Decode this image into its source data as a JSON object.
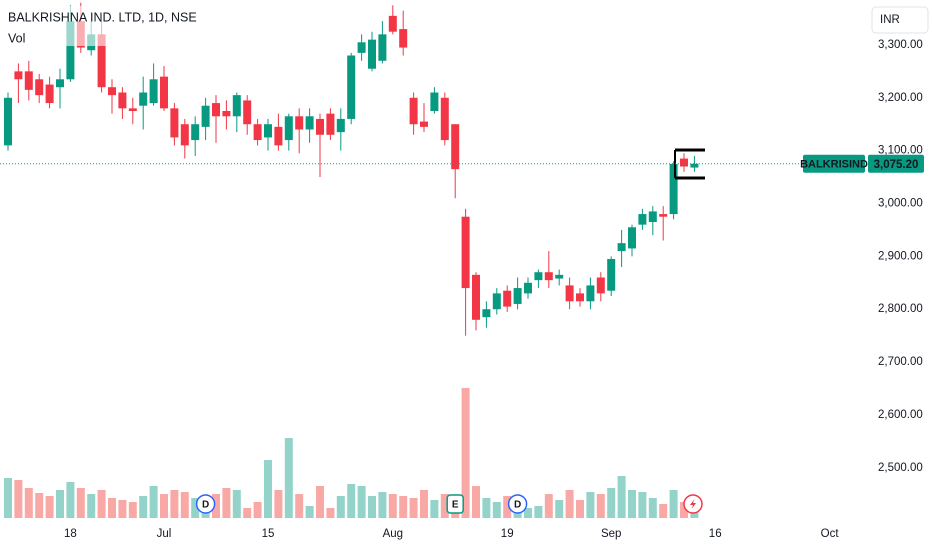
{
  "chart_data": {
    "type": "candlestick",
    "title": "BALKRISHNA IND. LTD, 1D, NSE",
    "volume_label": "Vol",
    "currency": "INR",
    "symbol": "BALKRISIND",
    "last_price": {
      "value": 3075.2,
      "label": "3,075.20"
    },
    "up_color": "#089981",
    "down_color": "#f23645",
    "volume_up_color": "#93d3ca",
    "volume_down_color": "#f8a9a6",
    "grid": false,
    "categories": [
      null,
      null,
      null,
      null,
      null,
      null,
      "18",
      null,
      null,
      null,
      null,
      null,
      null,
      null,
      null,
      "Jul",
      null,
      null,
      null,
      null,
      null,
      null,
      null,
      null,
      null,
      "15",
      null,
      null,
      null,
      null,
      null,
      null,
      null,
      null,
      null,
      null,
      null,
      "Aug",
      null,
      null,
      null,
      null,
      null,
      null,
      null,
      null,
      null,
      null,
      "19",
      null,
      null,
      null,
      null,
      null,
      null,
      null,
      null,
      null,
      "Sep",
      null,
      null,
      null,
      null,
      null,
      null,
      null,
      null,
      null,
      "16",
      null,
      null,
      null,
      null,
      null,
      null,
      null,
      null,
      null,
      null,
      "Oct"
    ],
    "events": [
      null,
      null,
      null,
      null,
      null,
      null,
      null,
      null,
      null,
      null,
      null,
      null,
      null,
      null,
      null,
      null,
      null,
      null,
      null,
      "D",
      null,
      null,
      null,
      null,
      null,
      null,
      null,
      null,
      null,
      null,
      null,
      null,
      null,
      null,
      null,
      null,
      null,
      null,
      null,
      null,
      null,
      null,
      null,
      "E",
      null,
      null,
      null,
      null,
      null,
      "D",
      null,
      null,
      null,
      null,
      null,
      null,
      null,
      null,
      null,
      null,
      null,
      null,
      null,
      null,
      null,
      null,
      null,
      null,
      null,
      null,
      null,
      null,
      null,
      null,
      null,
      null,
      null,
      null,
      null,
      null
    ],
    "open": [
      3110,
      3250,
      3250,
      3235,
      3225,
      3220,
      3235,
      3345,
      3290,
      3320,
      3220,
      3210,
      3180,
      3185,
      3190,
      3240,
      3180,
      3150,
      3120,
      3145,
      3190,
      3175,
      3165,
      3195,
      3150,
      3125,
      3145,
      3120,
      3165,
      3140,
      3160,
      3170,
      3135,
      3160,
      3285,
      3255,
      3270,
      3355,
      3330,
      3200,
      3155,
      3175,
      3200,
      3150,
      2975,
      2865,
      2785,
      2800,
      2835,
      2810,
      2830,
      2855,
      2870,
      2858,
      2845,
      2830,
      2815,
      2860,
      2835,
      2910,
      2915,
      2960,
      2965,
      2980,
      2980,
      3085,
      3068,
      null,
      null,
      null,
      null,
      null,
      null,
      null,
      null,
      null,
      null,
      null,
      null,
      null
    ],
    "high": [
      3210,
      3265,
      3270,
      3245,
      3240,
      3255,
      3375,
      3380,
      3345,
      3345,
      3235,
      3220,
      3200,
      3240,
      3265,
      3260,
      3190,
      3160,
      3165,
      3200,
      3205,
      3195,
      3210,
      3205,
      3160,
      3160,
      3170,
      3170,
      3180,
      3180,
      3170,
      3180,
      3180,
      3285,
      3320,
      3325,
      3345,
      3375,
      3365,
      3210,
      3190,
      3220,
      3210,
      3150,
      2990,
      2870,
      2815,
      2840,
      2845,
      2860,
      2860,
      2875,
      2910,
      2875,
      2860,
      2840,
      2860,
      2870,
      2900,
      2950,
      2960,
      2990,
      2995,
      2995,
      3080,
      3095,
      3090,
      null,
      null,
      null,
      null,
      null,
      null,
      null,
      null,
      null,
      null,
      null,
      null,
      null
    ],
    "low": [
      3100,
      3190,
      3195,
      3190,
      3180,
      3180,
      3230,
      3285,
      3280,
      3210,
      3170,
      3160,
      3150,
      3140,
      3185,
      3175,
      3110,
      3085,
      3090,
      3120,
      3115,
      3140,
      3135,
      3130,
      3110,
      3100,
      3100,
      3100,
      3095,
      3115,
      3050,
      3120,
      3100,
      3150,
      3270,
      3250,
      3265,
      3320,
      3280,
      3130,
      3135,
      3170,
      3110,
      3010,
      2750,
      2760,
      2765,
      2790,
      2795,
      2800,
      2820,
      2840,
      2840,
      2845,
      2800,
      2805,
      2800,
      2815,
      2825,
      2880,
      2900,
      2950,
      2940,
      2930,
      2970,
      3060,
      3060,
      null,
      null,
      null,
      null,
      null,
      null,
      null,
      null,
      null,
      null,
      null,
      null,
      null
    ],
    "close": [
      3200,
      3235,
      3215,
      3205,
      3190,
      3235,
      3345,
      3295,
      3320,
      3220,
      3205,
      3180,
      3175,
      3210,
      3235,
      3180,
      3125,
      3110,
      3150,
      3185,
      3165,
      3165,
      3205,
      3150,
      3120,
      3150,
      3110,
      3165,
      3140,
      3165,
      3130,
      3130,
      3160,
      3280,
      3305,
      3310,
      3320,
      3325,
      3295,
      3150,
      3145,
      3210,
      3120,
      3065,
      2840,
      2780,
      2800,
      2830,
      2805,
      2840,
      2850,
      2870,
      2855,
      2865,
      2815,
      2815,
      2845,
      2830,
      2895,
      2925,
      2955,
      2980,
      2985,
      2975,
      3075,
      3070,
      3075.2,
      null,
      null,
      null,
      null,
      null,
      null,
      null,
      null,
      null,
      null,
      null,
      null,
      null
    ],
    "volume": [
      40,
      38,
      30,
      25,
      22,
      28,
      36,
      30,
      24,
      28,
      20,
      18,
      16,
      22,
      32,
      24,
      28,
      26,
      20,
      16,
      24,
      30,
      28,
      10,
      16,
      58,
      28,
      80,
      24,
      12,
      32,
      10,
      22,
      34,
      32,
      22,
      26,
      24,
      22,
      20,
      28,
      18,
      24,
      20,
      130,
      32,
      20,
      16,
      22,
      14,
      10,
      12,
      24,
      18,
      28,
      18,
      26,
      24,
      30,
      42,
      28,
      26,
      20,
      14,
      28,
      16,
      10,
      null,
      null,
      null,
      null,
      null,
      null,
      null,
      null,
      null,
      null,
      null,
      null,
      null
    ],
    "ylim": [
      2405,
      3385
    ],
    "yticks": [
      {
        "value": 2500,
        "label": "2,500.00"
      },
      {
        "value": 2600,
        "label": "2,600.00"
      },
      {
        "value": 2700,
        "label": "2,700.00"
      },
      {
        "value": 2800,
        "label": "2,800.00"
      },
      {
        "value": 2900,
        "label": "2,900.00"
      },
      {
        "value": 3000,
        "label": "3,000.00"
      },
      {
        "value": 3100,
        "label": "3,100.00"
      },
      {
        "value": 3200,
        "label": "3,200.00"
      },
      {
        "value": 3300,
        "label": "3,300.00"
      }
    ]
  }
}
